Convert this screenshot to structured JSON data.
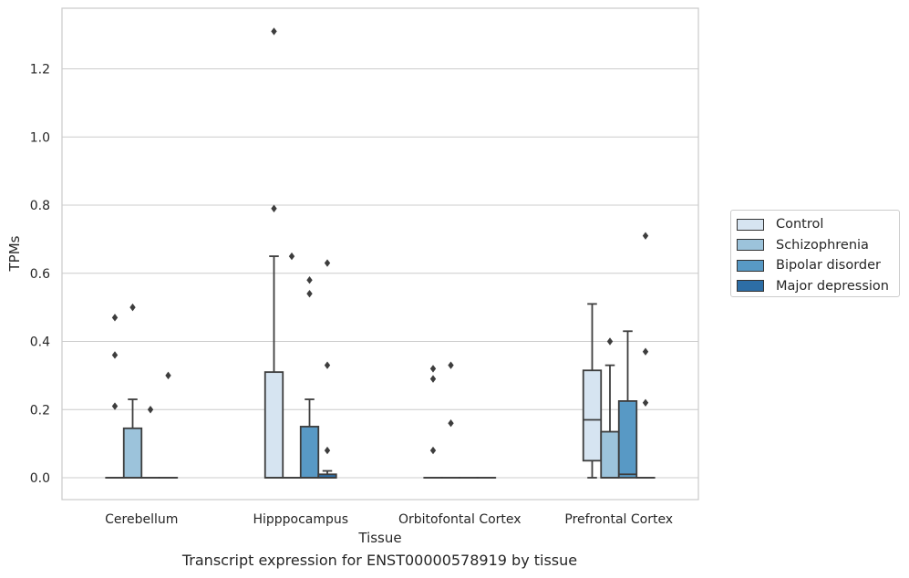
{
  "chart_data": {
    "type": "box",
    "title": "",
    "xlabel": "Tissue",
    "ylabel": "TPMs",
    "caption": "Transcript expression for ENST00000578919 by tissue",
    "ylim": [
      -0.065,
      1.38
    ],
    "yticks": [
      "0.0",
      "0.2",
      "0.4",
      "0.6",
      "0.8",
      "1.0",
      "1.2"
    ],
    "grid": "horizontal",
    "legend_position": "right",
    "categories": [
      "Cerebellum",
      "Hipppocampus",
      "Orbitofontal Cortex",
      "Prefrontal Cortex"
    ],
    "series": [
      {
        "name": "Control",
        "color": "#d6e4f1",
        "boxes": [
          {
            "min": 0,
            "q1": 0,
            "median": 0,
            "q3": 0,
            "max": 0,
            "outliers": [
              0.21,
              0.36,
              0.47
            ]
          },
          {
            "min": 0,
            "q1": 0,
            "median": 0,
            "q3": 0.31,
            "max": 0.65,
            "outliers": [
              0.79,
              1.31
            ]
          },
          {
            "min": 0,
            "q1": 0,
            "median": 0,
            "q3": 0,
            "max": 0,
            "outliers": [
              0.08,
              0.29,
              0.32
            ]
          },
          {
            "min": 0,
            "q1": 0.05,
            "median": 0.17,
            "q3": 0.315,
            "max": 0.51,
            "outliers": []
          }
        ]
      },
      {
        "name": "Schizophrenia",
        "color": "#9cc3db",
        "boxes": [
          {
            "min": 0,
            "q1": 0,
            "median": 0,
            "q3": 0.145,
            "max": 0.23,
            "outliers": [
              0.5
            ]
          },
          {
            "min": 0,
            "q1": 0,
            "median": 0,
            "q3": 0,
            "max": 0,
            "outliers": [
              0.65
            ]
          },
          {
            "min": 0,
            "q1": 0,
            "median": 0,
            "q3": 0,
            "max": 0,
            "outliers": [
              0.16,
              0.33
            ]
          },
          {
            "min": 0,
            "q1": 0,
            "median": 0,
            "q3": 0.135,
            "max": 0.33,
            "outliers": [
              0.4
            ]
          }
        ]
      },
      {
        "name": "Bipolar disorder",
        "color": "#5899c5",
        "boxes": [
          {
            "min": 0,
            "q1": 0,
            "median": 0,
            "q3": 0,
            "max": 0,
            "outliers": [
              0.2
            ]
          },
          {
            "min": 0,
            "q1": 0,
            "median": 0,
            "q3": 0.15,
            "max": 0.23,
            "outliers": [
              0.54,
              0.58
            ]
          },
          {
            "min": 0,
            "q1": 0,
            "median": 0,
            "q3": 0,
            "max": 0,
            "outliers": []
          },
          {
            "min": 0,
            "q1": 0,
            "median": 0.01,
            "q3": 0.225,
            "max": 0.43,
            "outliers": []
          }
        ]
      },
      {
        "name": "Major depression",
        "color": "#2d6ea6",
        "boxes": [
          {
            "min": 0,
            "q1": 0,
            "median": 0,
            "q3": 0,
            "max": 0,
            "outliers": [
              0.3
            ]
          },
          {
            "min": 0,
            "q1": 0,
            "median": 0,
            "q3": 0.01,
            "max": 0.02,
            "outliers": [
              0.08,
              0.33,
              0.63
            ]
          },
          {
            "min": 0,
            "q1": 0,
            "median": 0,
            "q3": 0,
            "max": 0,
            "outliers": []
          },
          {
            "min": 0,
            "q1": 0,
            "median": 0,
            "q3": 0,
            "max": 0,
            "outliers": [
              0.22,
              0.37,
              0.71
            ]
          }
        ]
      }
    ]
  }
}
